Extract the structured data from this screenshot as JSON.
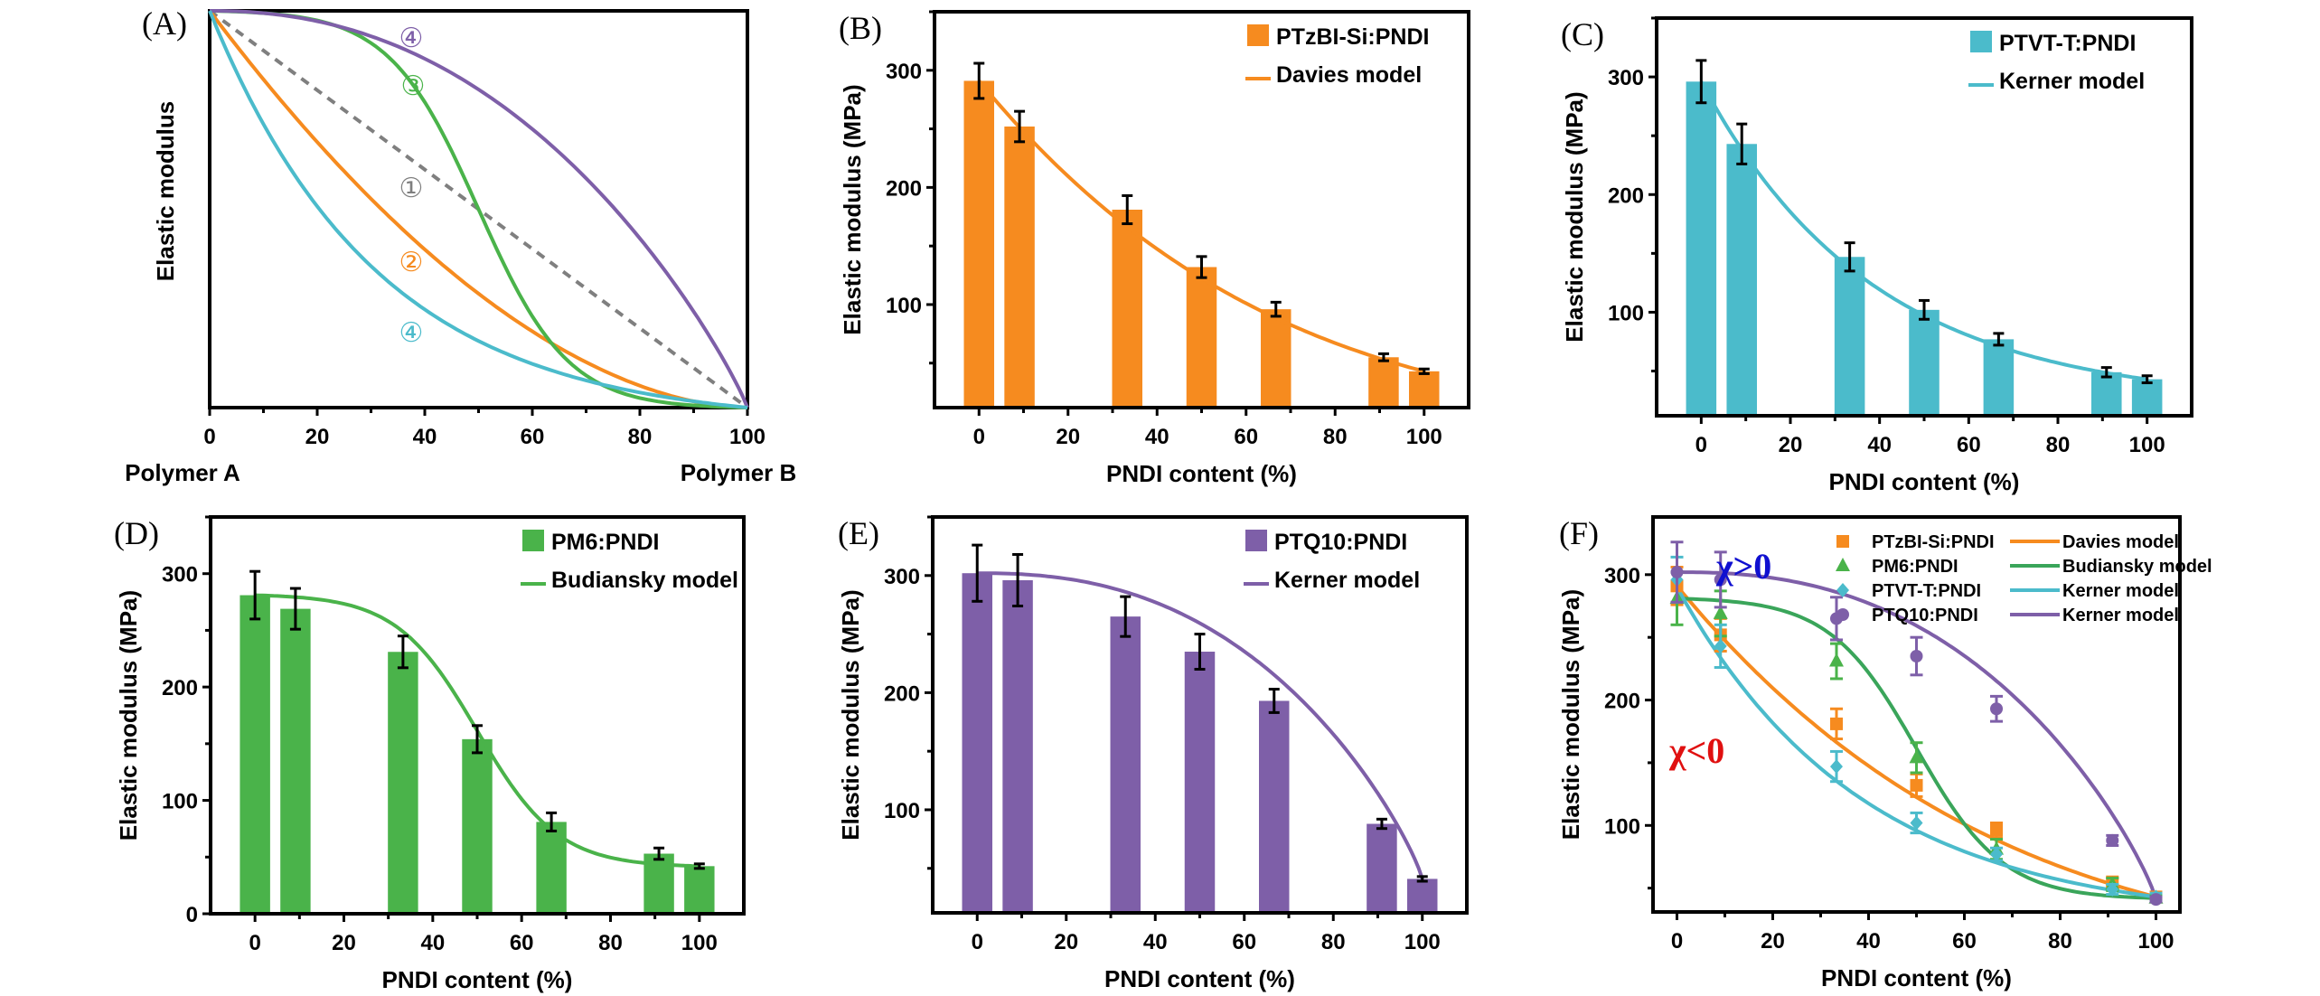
{
  "figure": {
    "colors": {
      "orange": "#F68B1F",
      "cyan": "#4BBBCB",
      "green": "#4AB34A",
      "purple": "#7E5FA8",
      "dashed_gray": "#7F7F7F",
      "budiansky_green": "#3AA55A",
      "chi_pos": "#1010D0",
      "chi_neg": "#E01010"
    }
  },
  "chart_data": [
    {
      "id": "A",
      "panel_label": "(A)",
      "type": "line",
      "title": "",
      "xlabel": "",
      "ylabel": "Elastic modulus",
      "xlim": [
        0,
        100
      ],
      "ylim": [
        0,
        1
      ],
      "xticks": [
        0,
        20,
        40,
        60,
        80,
        100
      ],
      "x_end_labels": [
        "Polymer A",
        "Polymer B"
      ],
      "series": [
        {
          "name": "1",
          "label": "①",
          "style": "dashed",
          "color": "#7F7F7F",
          "kind": "linear"
        },
        {
          "name": "2",
          "label": "②",
          "color": "#F68B1F",
          "kind": "convex-moderate"
        },
        {
          "name": "3",
          "label": "③",
          "color": "#4AB34A",
          "kind": "sigmoid"
        },
        {
          "name": "4-upper",
          "label": "④",
          "color": "#7E5FA8",
          "kind": "concave"
        },
        {
          "name": "4-lower",
          "label": "④",
          "color": "#4BBBCB",
          "kind": "convex-strong"
        }
      ],
      "annotations": [
        "④",
        "③",
        "①",
        "②",
        "④"
      ]
    },
    {
      "id": "B",
      "panel_label": "(B)",
      "type": "bar",
      "xlabel": "PNDI content (%)",
      "ylabel": "Elastic modulus (MPa)",
      "xlim": [
        -10,
        110
      ],
      "ylim": [
        12,
        350
      ],
      "xticks": [
        0,
        20,
        40,
        60,
        80,
        100
      ],
      "yticks": [
        100,
        200,
        300
      ],
      "x": [
        0,
        9.1,
        33.3,
        50,
        66.7,
        90.9,
        100
      ],
      "values": [
        291,
        252,
        181,
        132,
        96,
        55,
        43
      ],
      "errors": [
        15,
        13,
        12,
        9,
        6,
        3,
        2
      ],
      "bar_color": "#F68B1F",
      "bar_legend": "PTzBI-Si:PNDI",
      "model_name": "Davies model",
      "model": "davies",
      "legend_position": "top-right"
    },
    {
      "id": "C",
      "panel_label": "(C)",
      "type": "bar",
      "xlabel": "PNDI content (%)",
      "ylabel": "Elastic modulus (MPa)",
      "xlim": [
        -10,
        110
      ],
      "ylim": [
        12,
        350
      ],
      "xticks": [
        0,
        20,
        40,
        60,
        80,
        100
      ],
      "yticks": [
        100,
        200,
        300
      ],
      "x": [
        0,
        9.1,
        33.3,
        50,
        66.7,
        90.9,
        100
      ],
      "values": [
        296,
        243,
        147,
        102,
        77,
        49,
        43
      ],
      "errors": [
        18,
        17,
        12,
        8,
        5,
        4,
        3
      ],
      "bar_color": "#4BBBCB",
      "bar_legend": "PTVT-T:PNDI",
      "model_name": "Kerner model",
      "model": "kerner-neg",
      "legend_position": "top-right"
    },
    {
      "id": "D",
      "panel_label": "(D)",
      "type": "bar",
      "xlabel": "PNDI content (%)",
      "ylabel": "Elastic modulus (MPa)",
      "xlim": [
        -10,
        110
      ],
      "ylim": [
        0,
        350
      ],
      "xticks": [
        0,
        20,
        40,
        60,
        80,
        100
      ],
      "yticks": [
        0,
        100,
        200,
        300
      ],
      "x": [
        0,
        9.1,
        33.3,
        50,
        66.7,
        90.9,
        100
      ],
      "values": [
        281,
        269,
        231,
        154,
        81,
        53,
        42
      ],
      "errors": [
        21,
        18,
        14,
        12,
        8,
        5,
        2
      ],
      "bar_color": "#4AB34A",
      "bar_legend": "PM6:PNDI",
      "model_name": "Budiansky model",
      "model": "budiansky",
      "legend_position": "top-right"
    },
    {
      "id": "E",
      "panel_label": "(E)",
      "type": "bar",
      "xlabel": "PNDI content (%)",
      "ylabel": "Elastic modulus (MPa)",
      "xlim": [
        -10,
        110
      ],
      "ylim": [
        12,
        350
      ],
      "xticks": [
        0,
        20,
        40,
        60,
        80,
        100
      ],
      "yticks": [
        100,
        200,
        300
      ],
      "x": [
        0,
        9.1,
        33.3,
        50,
        66.7,
        90.9,
        100
      ],
      "values": [
        302,
        296,
        265,
        235,
        193,
        88,
        41
      ],
      "errors": [
        24,
        22,
        17,
        15,
        10,
        4,
        2
      ],
      "bar_color": "#7E5FA8",
      "bar_legend": "PTQ10:PNDI",
      "model_name": "Kerner model",
      "model": "kerner-pos",
      "legend_position": "top-right"
    },
    {
      "id": "F",
      "panel_label": "(F)",
      "type": "scatter",
      "xlabel": "PNDI content (%)",
      "ylabel": "Elastic modulus (MPa)",
      "xlim": [
        -5,
        105
      ],
      "ylim": [
        31,
        346
      ],
      "xticks": [
        0,
        20,
        40,
        60,
        80,
        100
      ],
      "yticks": [
        100,
        200,
        300
      ],
      "x": [
        0,
        9.1,
        33.3,
        50,
        66.7,
        90.9,
        100
      ],
      "series": [
        {
          "name": "PTzBI-Si:PNDI",
          "marker": "square",
          "color": "#F68B1F",
          "values": [
            291,
            252,
            181,
            132,
            96,
            55,
            43
          ],
          "errors": [
            15,
            13,
            12,
            9,
            6,
            3,
            2
          ],
          "model_name": "Davies model",
          "model": "davies",
          "model_color": "#F68B1F"
        },
        {
          "name": "PM6:PNDI",
          "marker": "triangle",
          "color": "#4AB34A",
          "values": [
            281,
            269,
            231,
            154,
            81,
            53,
            42
          ],
          "errors": [
            21,
            18,
            14,
            12,
            8,
            5,
            2
          ],
          "model_name": "Budiansky model",
          "model": "budiansky",
          "model_color": "#3AA55A"
        },
        {
          "name": "PTVT-T:PNDI",
          "marker": "diamond",
          "color": "#4BBBCB",
          "values": [
            296,
            243,
            147,
            102,
            77,
            49,
            43
          ],
          "errors": [
            18,
            17,
            12,
            8,
            5,
            4,
            3
          ],
          "model_name": "Kerner model",
          "model": "kerner-neg",
          "model_color": "#4BBBCB"
        },
        {
          "name": "PTQ10:PNDI",
          "marker": "circle",
          "color": "#7E5FA8",
          "values": [
            302,
            296,
            265,
            235,
            193,
            88,
            41
          ],
          "errors": [
            24,
            22,
            17,
            15,
            10,
            4,
            2
          ],
          "model_name": "Kerner model",
          "model": "kerner-pos",
          "model_color": "#7E5FA8"
        }
      ],
      "annotations": [
        {
          "text": "χ>0",
          "color": "#1010D0",
          "near": "upper-left"
        },
        {
          "text": "χ<0",
          "color": "#E01010",
          "near": "middle-left"
        }
      ],
      "legend_position": "top"
    }
  ]
}
